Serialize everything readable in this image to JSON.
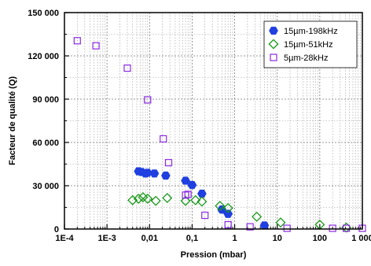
{
  "chart_data": {
    "type": "scatter",
    "title": "",
    "xlabel": "Pression (mbar)",
    "ylabel": "Facteur de qualité (Q)",
    "xscale": "log",
    "xlim": [
      0.0001,
      1000
    ],
    "ylim": [
      0,
      150000
    ],
    "x_ticks": [
      {
        "value": 0.0001,
        "label": "1E-4"
      },
      {
        "value": 0.001,
        "label": "1E-3"
      },
      {
        "value": 0.01,
        "label": "0,01"
      },
      {
        "value": 0.1,
        "label": "0,1"
      },
      {
        "value": 1,
        "label": "1"
      },
      {
        "value": 10,
        "label": "10"
      },
      {
        "value": 100,
        "label": "100"
      },
      {
        "value": 1000,
        "label": "1 000"
      }
    ],
    "y_ticks": [
      {
        "value": 0,
        "label": "0"
      },
      {
        "value": 30000,
        "label": "30 000"
      },
      {
        "value": 60000,
        "label": "60 000"
      },
      {
        "value": 90000,
        "label": "90 000"
      },
      {
        "value": 120000,
        "label": "120 000"
      },
      {
        "value": 150000,
        "label": "150 000"
      }
    ],
    "grid": true,
    "legend_position": "top-right",
    "series": [
      {
        "name": "15µm-198kHz",
        "marker": "hexagon-filled",
        "color": "#1f3fe0",
        "points": [
          [
            0.0055,
            40000
          ],
          [
            0.0065,
            39500
          ],
          [
            0.008,
            38500
          ],
          [
            0.009,
            39000
          ],
          [
            0.013,
            38500
          ],
          [
            0.024,
            37000
          ],
          [
            0.07,
            33500
          ],
          [
            0.1,
            30500
          ],
          [
            0.17,
            24500
          ],
          [
            0.5,
            13500
          ],
          [
            0.7,
            10500
          ],
          [
            5,
            2500
          ]
        ]
      },
      {
        "name": "15µm-51kHz",
        "marker": "diamond-open",
        "color": "#1a9a1a",
        "points": [
          [
            0.004,
            20000
          ],
          [
            0.0055,
            21000
          ],
          [
            0.007,
            22000
          ],
          [
            0.009,
            21000
          ],
          [
            0.014,
            19500
          ],
          [
            0.026,
            21500
          ],
          [
            0.07,
            19500
          ],
          [
            0.12,
            20000
          ],
          [
            0.17,
            19000
          ],
          [
            0.45,
            16000
          ],
          [
            0.7,
            14500
          ],
          [
            3.3,
            8500
          ],
          [
            12,
            4500
          ],
          [
            100,
            3000
          ],
          [
            420,
            1000
          ]
        ]
      },
      {
        "name": "5µm-28kHz",
        "marker": "square-open",
        "color": "#8a2be2",
        "points": [
          [
            0.0002,
            130500
          ],
          [
            0.00055,
            127000
          ],
          [
            0.003,
            111500
          ],
          [
            0.009,
            89500
          ],
          [
            0.021,
            62500
          ],
          [
            0.028,
            46000
          ],
          [
            0.07,
            23500
          ],
          [
            0.08,
            24000
          ],
          [
            0.2,
            9500
          ],
          [
            0.7,
            3000
          ],
          [
            2.3,
            1500
          ],
          [
            17,
            500
          ],
          [
            200,
            500
          ],
          [
            420,
            500
          ],
          [
            1000,
            500
          ]
        ]
      }
    ]
  }
}
